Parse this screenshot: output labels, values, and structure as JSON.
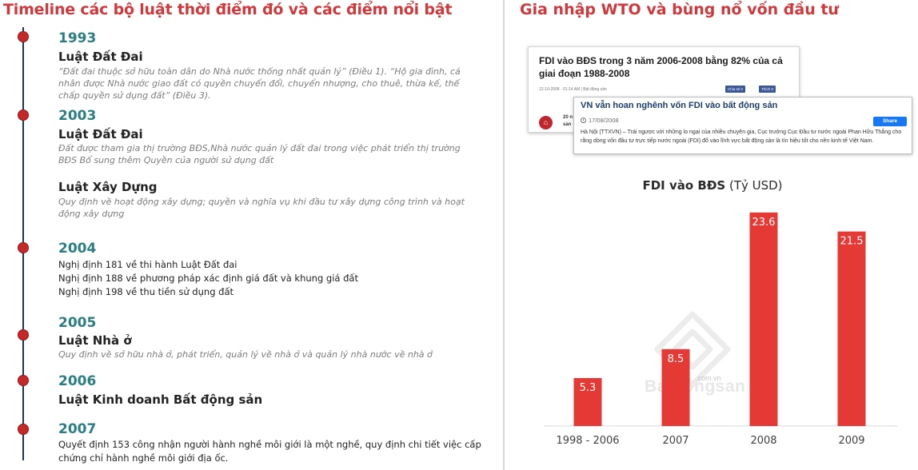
{
  "left": {
    "title": "Timeline các bộ luật thời điểm đó và các điểm nổi bật",
    "entries": {
      "e1993": {
        "year": "1993",
        "law": "Luật Đất Đai",
        "desc": "“Đất đai thuộc sở hữu toàn dân do Nhà nước thống nhất quản lý” (Điều 1). “Hộ gia đình, cá nhân được Nhà nước giao đất có quyền chuyển đổi, chuyển nhượng, cho thuê, thừa kế, thế chấp quyền sử dụng đất” (Điều 3)."
      },
      "e2003": {
        "year": "2003",
        "law": "Luật Đất Đai",
        "desc": "Đất được tham gia thị trường BĐS,Nhà nước quản lý đất đai trong việc phát triển thị trường BĐS Bổ sung thêm Quyền của người sử dụng đất",
        "law2": "Luật Xây Dựng",
        "desc2": "Quy định về hoạt động xây dựng; quyền và nghĩa vụ khi đầu tư xây dựng công trình và hoạt động xây dựng"
      },
      "e2004": {
        "year": "2004",
        "d1": "Nghị định 181 về thi hành Luật Đất đai",
        "d2": "Nghị định 188 về phương pháp xác định giá đất và khung giá đất",
        "d3": "Nghị định 198 về thu tiền sử dụng đất"
      },
      "e2005": {
        "year": "2005",
        "law": "Luật Nhà ở",
        "desc": "Quy định về sở hữu nhà ở, phát triển, quản lý về nhà ở và quản lý nhà nước về nhà ở"
      },
      "e2006": {
        "year": "2006",
        "law": "Luật Kinh doanh Bất động sản"
      },
      "e2007": {
        "year": "2007",
        "desc": "Quyết định 153 công nhận người hành nghề môi giới là một nghề, quy định chi tiết việc cấp chứng chỉ hành nghề môi giới địa ốc."
      }
    }
  },
  "right": {
    "title": "Gia nhập WTO và bùng nổ vốn đầu tư",
    "clip1": {
      "headline": "FDI vào BĐS trong 3 năm 2006-2008 bằng 82% của cả giai đoạn 1988-2008",
      "meta": "12-10-2008 - 01:14 AM | Bất động sản",
      "fb_share": "Chia sẻ 0",
      "fb_like": "Thích 0",
      "snippet": "20 n sản"
    },
    "clip2": {
      "headline": "VN vẫn hoan nghênh vốn FDI vào bất động sản",
      "date": "17/08/2008",
      "share": "Share",
      "body": "Hà Nội (TTXVN) – Trái ngược với những lo ngại của nhiều chuyên gia, Cục trưởng Cục Đầu tư nước ngoài Phan Hữu Thắng cho rằng dòng vốn đầu tư trực tiếp nước ngoài (FDI) đổ vào lĩnh vực bất động sản là tín hiệu tốt cho nền kinh tế Việt Nam."
    },
    "watermark": {
      "brand": "Batdongsan",
      "suffix": ".com.vn"
    }
  },
  "chart_data": {
    "type": "bar",
    "title": "FDI vào BĐS",
    "title_unit": "(Tỷ USD)",
    "categories": [
      "1998 - 2006",
      "2007",
      "2008",
      "2009"
    ],
    "values": [
      5.3,
      8.5,
      23.6,
      21.5
    ],
    "value_labels": [
      "5.3",
      "8.5",
      "23.6",
      "21.5"
    ],
    "ylim": [
      0,
      25
    ],
    "grid": false,
    "bar_color": "#e53935",
    "label_color": "#ffffff",
    "xlabel": "",
    "ylabel": ""
  },
  "colors": {
    "title_red": "#d0393b",
    "year_teal": "#2a7e83",
    "dot_red": "#c62828",
    "line_navy": "#1f3552"
  }
}
